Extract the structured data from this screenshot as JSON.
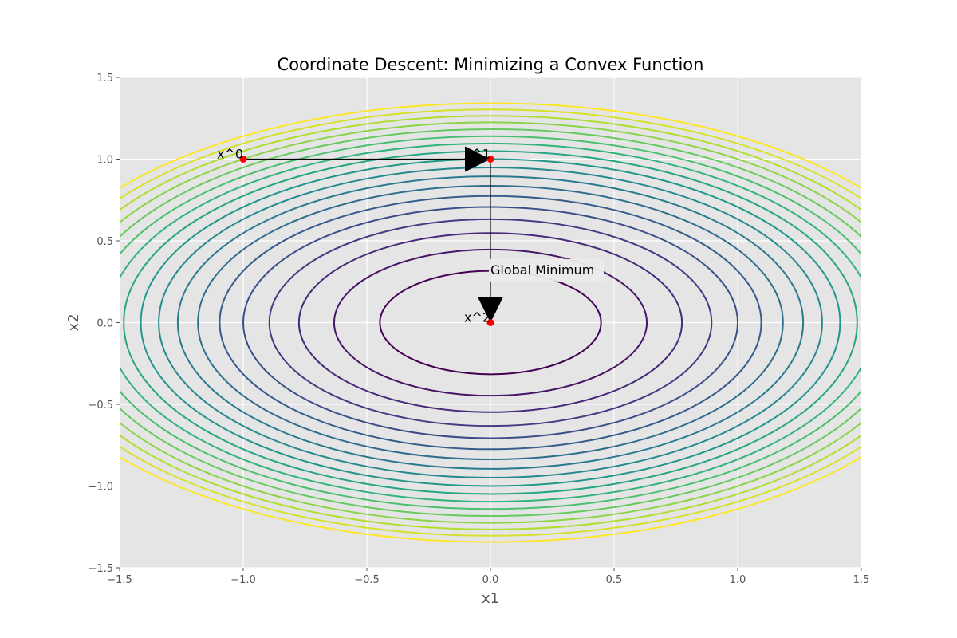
{
  "chart_data": {
    "type": "contour",
    "title": "Coordinate Descent: Minimizing a Convex Function",
    "xlabel": "x1",
    "ylabel": "x2",
    "xlim": [
      -1.5,
      1.5
    ],
    "ylim": [
      -1.5,
      1.5
    ],
    "xticks": [
      -1.5,
      -1.0,
      -0.5,
      0.0,
      0.5,
      1.0,
      1.5
    ],
    "yticks": [
      -1.5,
      -1.0,
      -0.5,
      0.0,
      0.5,
      1.0,
      1.5
    ],
    "xtick_labels": [
      "−1.5",
      "−1.0",
      "−0.5",
      "0.0",
      "0.5",
      "1.0",
      "1.5"
    ],
    "ytick_labels": [
      "−1.5",
      "−1.0",
      "−0.5",
      "0.0",
      "0.5",
      "1.0",
      "1.5"
    ],
    "grid": true,
    "background_color": "#e5e5e5",
    "colormap": "viridis",
    "function_scale": {
      "a": 1.0,
      "b": 2.0
    },
    "contour_levels": [
      0.2,
      0.4,
      0.6,
      0.8,
      1.0,
      1.2,
      1.4,
      1.6,
      1.8,
      2.0,
      2.2,
      2.4,
      2.6,
      2.8,
      3.0,
      3.2,
      3.4,
      3.6
    ],
    "level_range": [
      0.2,
      3.6
    ],
    "points": [
      {
        "label": "x^0",
        "x": -1.0,
        "y": 1.0
      },
      {
        "label": "x^1",
        "x": 0.0,
        "y": 1.0
      },
      {
        "label": "x^2",
        "x": 0.0,
        "y": 0.0
      }
    ],
    "point_color": "#ff0000",
    "arrows": [
      {
        "from": [
          -1.0,
          1.0
        ],
        "to": [
          0.0,
          1.0
        ]
      },
      {
        "from": [
          0.0,
          1.0
        ],
        "to": [
          0.0,
          0.0
        ]
      }
    ],
    "annotations": [
      {
        "text": "Global Minimum",
        "x": 0.0,
        "y": 0.33
      }
    ]
  }
}
